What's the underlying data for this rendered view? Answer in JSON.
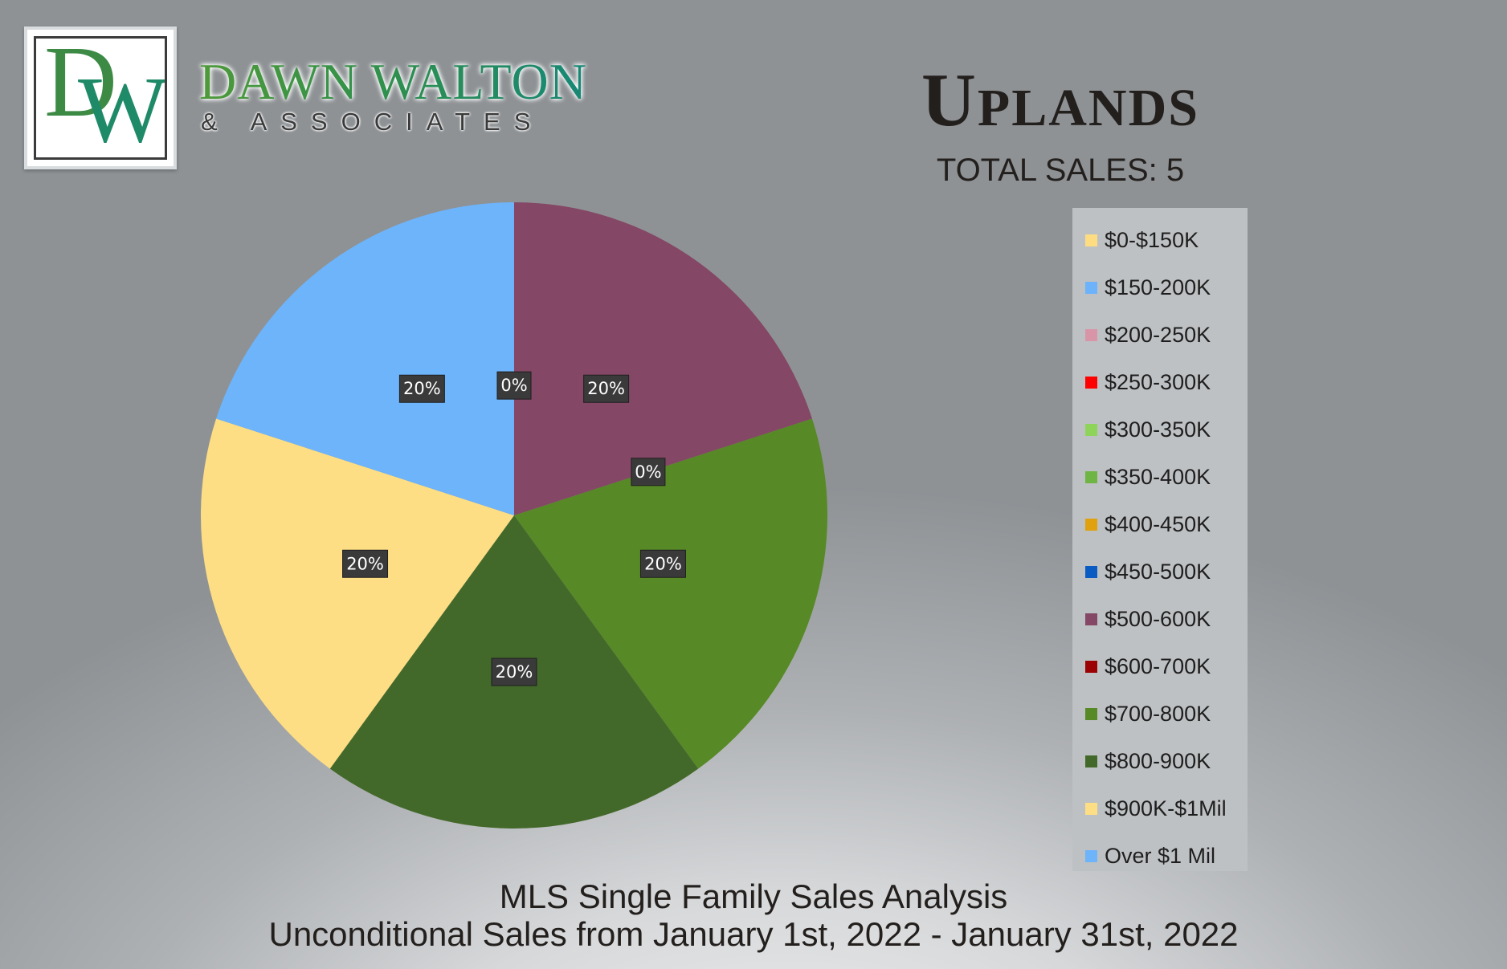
{
  "brand": {
    "logo_letters": "DW",
    "name": "DAWN WALTON",
    "subtitle": "& ASSOCIATES"
  },
  "header": {
    "title": "Uplands",
    "total_sales": "TOTAL SALES: 5"
  },
  "footer": {
    "line1": "MLS Single Family Sales Analysis",
    "line2": "Unconditional Sales from January 1st, 2022 - January 31st, 2022"
  },
  "chart_data": {
    "type": "pie",
    "title": "Uplands",
    "legend_position": "right",
    "categories": [
      "$0-$150K",
      "$150-200K",
      "$200-250K",
      "$250-300K",
      "$300-350K",
      "$350-400K",
      "$400-450K",
      "$450-500K",
      "$500-600K",
      "$600-700K",
      "$700-800K",
      "$800-900K",
      "$900K-$1Mil",
      "Over $1 Mil"
    ],
    "colors": [
      "#fedd82",
      "#6cb3fb",
      "#d895a8",
      "#ff0000",
      "#8fd45a",
      "#6fb545",
      "#e0a10f",
      "#0b5cc2",
      "#844765",
      "#9b0203",
      "#578926",
      "#43692a",
      "#fede84",
      "#6db4fb"
    ],
    "values": [
      0,
      0,
      0,
      0,
      0,
      0,
      0,
      0,
      1,
      0,
      1,
      1,
      1,
      1
    ],
    "data_labels": [
      "",
      "",
      "",
      "",
      "",
      "",
      "",
      "",
      "20%",
      "0%",
      "20%",
      "20%",
      "20%",
      "20%"
    ],
    "extra_labels": [
      "0%"
    ]
  }
}
